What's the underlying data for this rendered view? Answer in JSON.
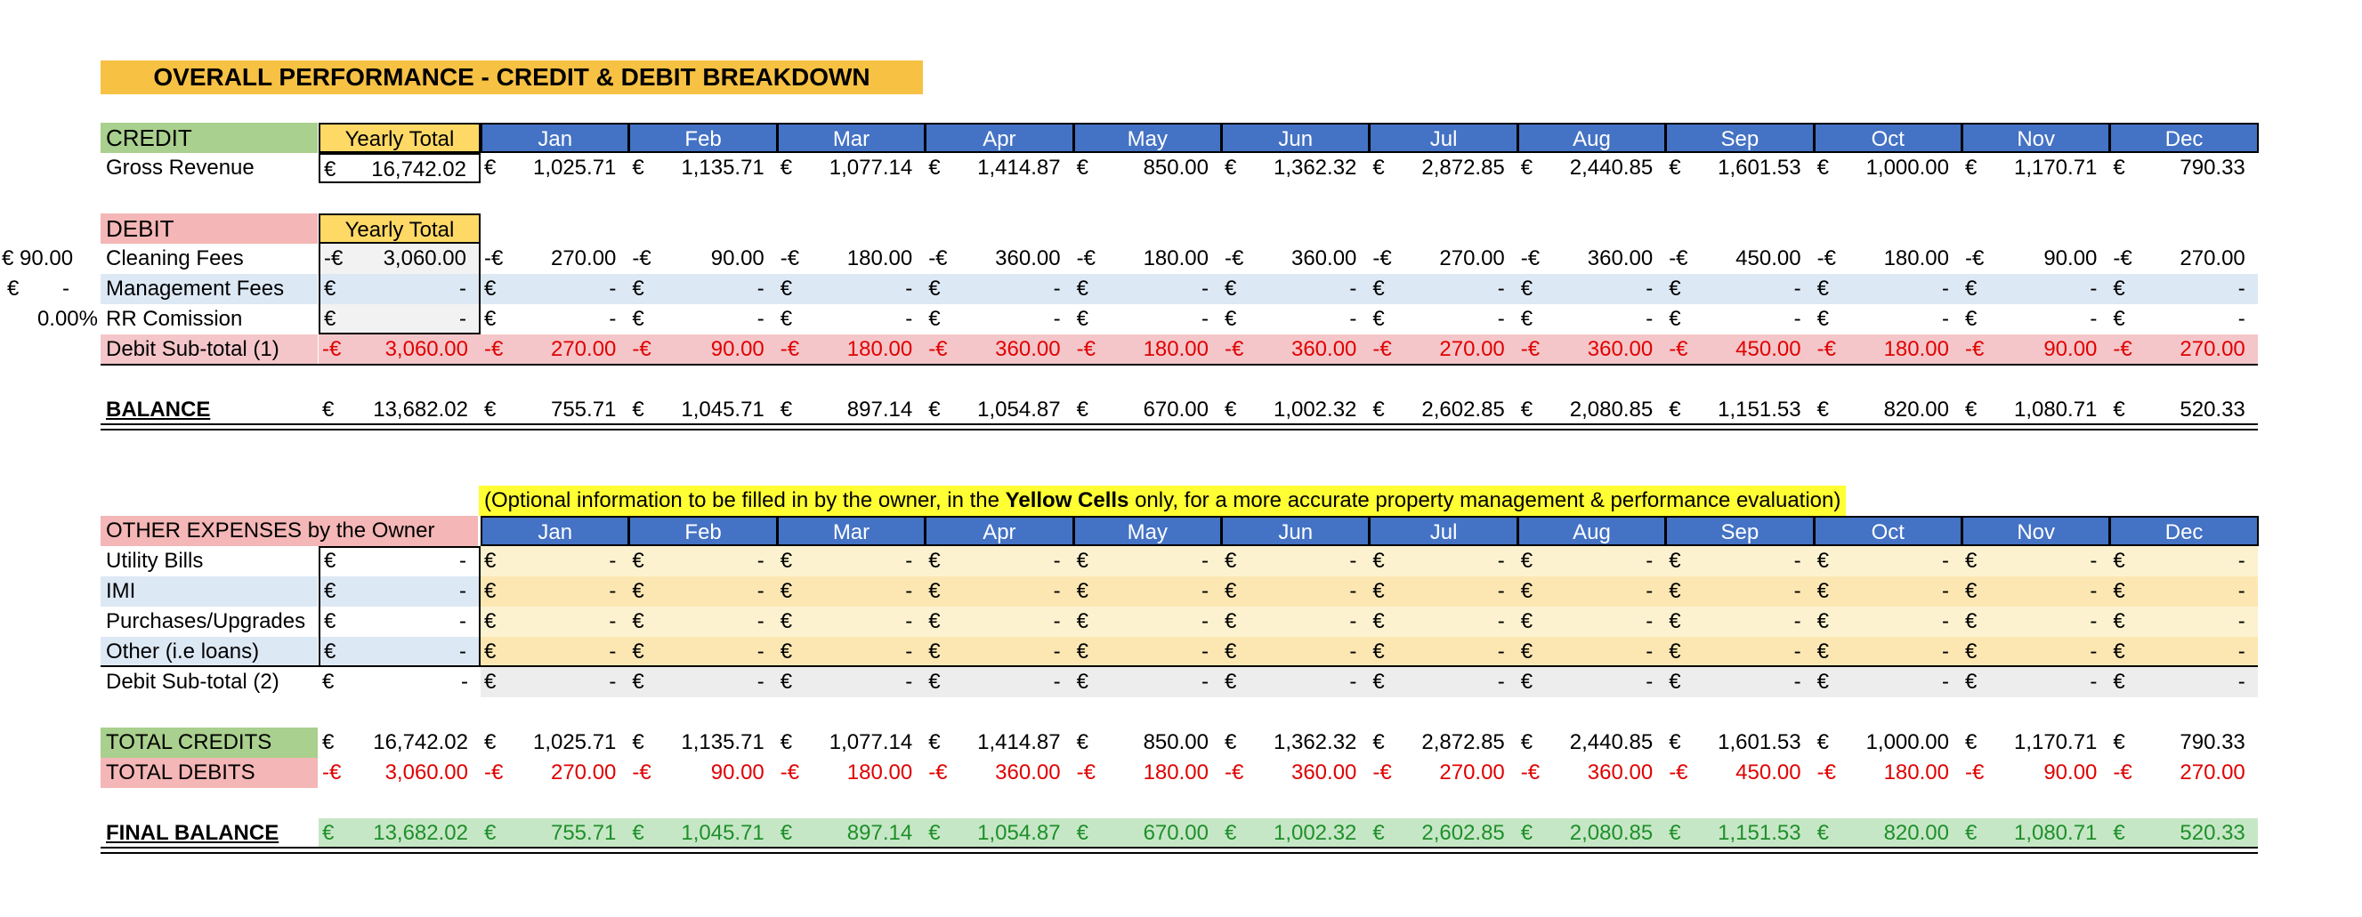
{
  "title": "OVERALL PERFORMANCE - CREDIT & DEBIT BREAKDOWN",
  "months": [
    "Jan",
    "Feb",
    "Mar",
    "Apr",
    "May",
    "Jun",
    "Jul",
    "Aug",
    "Sep",
    "Oct",
    "Nov",
    "Dec"
  ],
  "credit": {
    "label": "CREDIT",
    "yearly_header": "Yearly Total",
    "gross_revenue": {
      "label": "Gross Revenue",
      "total": {
        "cur": "€",
        "val": "16,742.02"
      },
      "months": [
        {
          "cur": "€",
          "val": "1,025.71"
        },
        {
          "cur": "€",
          "val": "1,135.71"
        },
        {
          "cur": "€",
          "val": "1,077.14"
        },
        {
          "cur": "€",
          "val": "1,414.87"
        },
        {
          "cur": "€",
          "val": "850.00"
        },
        {
          "cur": "€",
          "val": "1,362.32"
        },
        {
          "cur": "€",
          "val": "2,872.85"
        },
        {
          "cur": "€",
          "val": "2,440.85"
        },
        {
          "cur": "€",
          "val": "1,601.53"
        },
        {
          "cur": "€",
          "val": "1,000.00"
        },
        {
          "cur": "€",
          "val": "1,170.71"
        },
        {
          "cur": "€",
          "val": "790.33"
        }
      ]
    }
  },
  "debit": {
    "label": "DEBIT",
    "yearly_header": "Yearly Total",
    "side_values": {
      "cleaning": "€ 90.00",
      "management_cur": "€",
      "management_val": "-",
      "commission": "0.00%"
    },
    "rows": [
      {
        "label": "Cleaning Fees",
        "total": {
          "cur": "-€",
          "val": "3,060.00"
        },
        "months": [
          {
            "cur": "-€",
            "val": "270.00"
          },
          {
            "cur": "-€",
            "val": "90.00"
          },
          {
            "cur": "-€",
            "val": "180.00"
          },
          {
            "cur": "-€",
            "val": "360.00"
          },
          {
            "cur": "-€",
            "val": "180.00"
          },
          {
            "cur": "-€",
            "val": "360.00"
          },
          {
            "cur": "-€",
            "val": "270.00"
          },
          {
            "cur": "-€",
            "val": "360.00"
          },
          {
            "cur": "-€",
            "val": "450.00"
          },
          {
            "cur": "-€",
            "val": "180.00"
          },
          {
            "cur": "-€",
            "val": "90.00"
          },
          {
            "cur": "-€",
            "val": "270.00"
          }
        ]
      },
      {
        "label": "Management Fees",
        "total": {
          "cur": "€",
          "val": "-"
        },
        "months": [
          {
            "cur": "€",
            "val": "-"
          },
          {
            "cur": "€",
            "val": "-"
          },
          {
            "cur": "€",
            "val": "-"
          },
          {
            "cur": "€",
            "val": "-"
          },
          {
            "cur": "€",
            "val": "-"
          },
          {
            "cur": "€",
            "val": "-"
          },
          {
            "cur": "€",
            "val": "-"
          },
          {
            "cur": "€",
            "val": "-"
          },
          {
            "cur": "€",
            "val": "-"
          },
          {
            "cur": "€",
            "val": "-"
          },
          {
            "cur": "€",
            "val": "-"
          },
          {
            "cur": "€",
            "val": "-"
          }
        ]
      },
      {
        "label": "RR Comission",
        "total": {
          "cur": "€",
          "val": "-"
        },
        "months": [
          {
            "cur": "€",
            "val": "-"
          },
          {
            "cur": "€",
            "val": "-"
          },
          {
            "cur": "€",
            "val": "-"
          },
          {
            "cur": "€",
            "val": "-"
          },
          {
            "cur": "€",
            "val": "-"
          },
          {
            "cur": "€",
            "val": "-"
          },
          {
            "cur": "€",
            "val": "-"
          },
          {
            "cur": "€",
            "val": "-"
          },
          {
            "cur": "€",
            "val": "-"
          },
          {
            "cur": "€",
            "val": "-"
          },
          {
            "cur": "€",
            "val": "-"
          },
          {
            "cur": "€",
            "val": "-"
          }
        ]
      }
    ],
    "subtotal": {
      "label": "Debit Sub-total (1)",
      "total": {
        "cur": "-€",
        "val": "3,060.00"
      },
      "months": [
        {
          "cur": "-€",
          "val": "270.00"
        },
        {
          "cur": "-€",
          "val": "90.00"
        },
        {
          "cur": "-€",
          "val": "180.00"
        },
        {
          "cur": "-€",
          "val": "360.00"
        },
        {
          "cur": "-€",
          "val": "180.00"
        },
        {
          "cur": "-€",
          "val": "360.00"
        },
        {
          "cur": "-€",
          "val": "270.00"
        },
        {
          "cur": "-€",
          "val": "360.00"
        },
        {
          "cur": "-€",
          "val": "450.00"
        },
        {
          "cur": "-€",
          "val": "180.00"
        },
        {
          "cur": "-€",
          "val": "90.00"
        },
        {
          "cur": "-€",
          "val": "270.00"
        }
      ]
    }
  },
  "balance": {
    "label": "BALANCE",
    "total": {
      "cur": "€",
      "val": "13,682.02"
    },
    "months": [
      {
        "cur": "€",
        "val": "755.71"
      },
      {
        "cur": "€",
        "val": "1,045.71"
      },
      {
        "cur": "€",
        "val": "897.14"
      },
      {
        "cur": "€",
        "val": "1,054.87"
      },
      {
        "cur": "€",
        "val": "670.00"
      },
      {
        "cur": "€",
        "val": "1,002.32"
      },
      {
        "cur": "€",
        "val": "2,602.85"
      },
      {
        "cur": "€",
        "val": "2,080.85"
      },
      {
        "cur": "€",
        "val": "1,151.53"
      },
      {
        "cur": "€",
        "val": "820.00"
      },
      {
        "cur": "€",
        "val": "1,080.71"
      },
      {
        "cur": "€",
        "val": "520.33"
      }
    ]
  },
  "note": {
    "before": "(Optional information to be filled in by the owner, in the ",
    "bold": "Yellow Cells",
    "after": " only, for a more accurate property management & performance evaluation)"
  },
  "other_expenses": {
    "label": "OTHER EXPENSES by the Owner",
    "rows": [
      {
        "label": "Utility Bills",
        "total": {
          "cur": "€",
          "val": "-"
        }
      },
      {
        "label": "IMI",
        "total": {
          "cur": "€",
          "val": "-"
        }
      },
      {
        "label": "Purchases/Upgrades",
        "total": {
          "cur": "€",
          "val": "-"
        }
      },
      {
        "label": "Other  (i.e loans)",
        "total": {
          "cur": "€",
          "val": "-"
        }
      }
    ],
    "month_cell": {
      "cur": "€",
      "val": "-"
    },
    "subtotal": {
      "label": "Debit Sub-total (2)",
      "total": {
        "cur": "€",
        "val": "-"
      }
    }
  },
  "totals": {
    "credits": {
      "label": "TOTAL CREDITS",
      "total": {
        "cur": "€",
        "val": "16,742.02"
      },
      "months": [
        {
          "cur": "€",
          "val": "1,025.71"
        },
        {
          "cur": "€",
          "val": "1,135.71"
        },
        {
          "cur": "€",
          "val": "1,077.14"
        },
        {
          "cur": "€",
          "val": "1,414.87"
        },
        {
          "cur": "€",
          "val": "850.00"
        },
        {
          "cur": "€",
          "val": "1,362.32"
        },
        {
          "cur": "€",
          "val": "2,872.85"
        },
        {
          "cur": "€",
          "val": "2,440.85"
        },
        {
          "cur": "€",
          "val": "1,601.53"
        },
        {
          "cur": "€",
          "val": "1,000.00"
        },
        {
          "cur": "€",
          "val": "1,170.71"
        },
        {
          "cur": "€",
          "val": "790.33"
        }
      ]
    },
    "debits": {
      "label": "TOTAL DEBITS",
      "total": {
        "cur": "-€",
        "val": "3,060.00"
      },
      "months": [
        {
          "cur": "-€",
          "val": "270.00"
        },
        {
          "cur": "-€",
          "val": "90.00"
        },
        {
          "cur": "-€",
          "val": "180.00"
        },
        {
          "cur": "-€",
          "val": "360.00"
        },
        {
          "cur": "-€",
          "val": "180.00"
        },
        {
          "cur": "-€",
          "val": "360.00"
        },
        {
          "cur": "-€",
          "val": "270.00"
        },
        {
          "cur": "-€",
          "val": "360.00"
        },
        {
          "cur": "-€",
          "val": "450.00"
        },
        {
          "cur": "-€",
          "val": "180.00"
        },
        {
          "cur": "-€",
          "val": "90.00"
        },
        {
          "cur": "-€",
          "val": "270.00"
        }
      ]
    },
    "final_balance": {
      "label": "FINAL BALANCE",
      "total": {
        "cur": "€",
        "val": "13,682.02"
      },
      "months": [
        {
          "cur": "€",
          "val": "755.71"
        },
        {
          "cur": "€",
          "val": "1,045.71"
        },
        {
          "cur": "€",
          "val": "897.14"
        },
        {
          "cur": "€",
          "val": "1,054.87"
        },
        {
          "cur": "€",
          "val": "670.00"
        },
        {
          "cur": "€",
          "val": "1,002.32"
        },
        {
          "cur": "€",
          "val": "2,602.85"
        },
        {
          "cur": "€",
          "val": "2,080.85"
        },
        {
          "cur": "€",
          "val": "1,151.53"
        },
        {
          "cur": "€",
          "val": "820.00"
        },
        {
          "cur": "€",
          "val": "1,080.71"
        },
        {
          "cur": "€",
          "val": "520.33"
        }
      ]
    }
  }
}
